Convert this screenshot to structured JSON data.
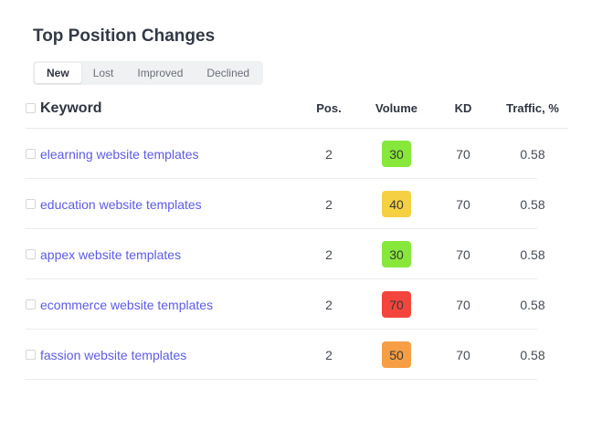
{
  "title": "Top Position Changes",
  "tabs": {
    "items": [
      {
        "label": "New",
        "active": true
      },
      {
        "label": "Lost",
        "active": false
      },
      {
        "label": "Improved",
        "active": false
      },
      {
        "label": "Declined",
        "active": false
      }
    ]
  },
  "table": {
    "headers": {
      "keyword": "Keyword",
      "pos": "Pos.",
      "volume": "Volume",
      "kd": "KD",
      "traffic": "Traffic, %"
    },
    "rows": [
      {
        "keyword": "elearning website templates",
        "pos": "2",
        "volume": "30",
        "volume_color": "#87e73b",
        "kd": "70",
        "traffic": "0.58"
      },
      {
        "keyword": "education website templates",
        "pos": "2",
        "volume": "40",
        "volume_color": "#f6d043",
        "kd": "70",
        "traffic": "0.58"
      },
      {
        "keyword": "appex website templates",
        "pos": "2",
        "volume": "30",
        "volume_color": "#87e73b",
        "kd": "70",
        "traffic": "0.58"
      },
      {
        "keyword": "ecommerce website templates",
        "pos": "2",
        "volume": "70",
        "volume_color": "#f4453c",
        "kd": "70",
        "traffic": "0.58"
      },
      {
        "keyword": "fassion website templates",
        "pos": "2",
        "volume": "50",
        "volume_color": "#f69e45",
        "kd": "70",
        "traffic": "0.58"
      }
    ]
  },
  "colors": {
    "link": "#5d5be6",
    "volume_green": "#87e73b",
    "volume_yellow": "#f6d043",
    "volume_red": "#f4453c",
    "volume_orange": "#f69e45"
  }
}
